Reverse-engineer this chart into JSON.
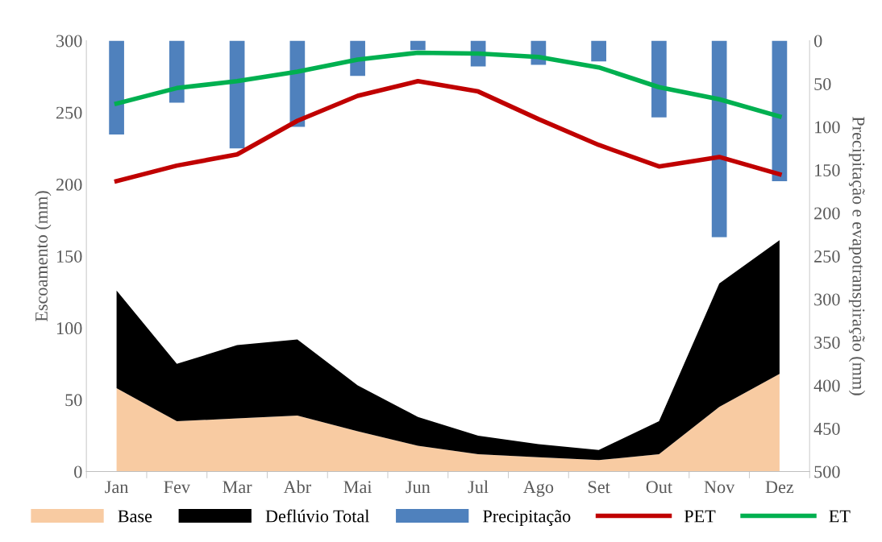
{
  "chart_data": {
    "type": "area",
    "stacked": true,
    "categories": [
      "Jan",
      "Fev",
      "Mar",
      "Abr",
      "Mai",
      "Jun",
      "Jul",
      "Ago",
      "Set",
      "Out",
      "Nov",
      "Dez"
    ],
    "series": [
      {
        "name": "Base",
        "color": "#f8cba2",
        "values": [
          58,
          35,
          37,
          39,
          28,
          18,
          12,
          10,
          8,
          12,
          45,
          68
        ]
      },
      {
        "name": "Deflúvio Total",
        "color": "#000000",
        "values": [
          68,
          40,
          51,
          53,
          32,
          20,
          13,
          9,
          7,
          23,
          86,
          93
        ]
      },
      {
        "name": "Precipitação",
        "type": "bar",
        "axis": "y2",
        "color": "#4f81bd",
        "values": [
          109,
          72,
          125,
          100,
          41,
          11,
          30,
          28,
          24,
          89,
          228,
          163
        ]
      },
      {
        "name": "PET",
        "type": "line",
        "axis": "y2",
        "color": "#c00000",
        "values": [
          163,
          145,
          132,
          93,
          64,
          47,
          59,
          91,
          121,
          146,
          135,
          155
        ]
      },
      {
        "name": "ET",
        "type": "line",
        "axis": "y2",
        "color": "#00b050",
        "values": [
          73,
          55,
          47,
          36,
          22,
          14,
          15,
          19,
          31,
          54,
          68,
          88
        ]
      }
    ],
    "ylabel": "Escoamento (mm)",
    "y2label": "Precipitação e evapotranspiração (mm)",
    "ylim": [
      0,
      300
    ],
    "yticks": [
      0,
      50,
      100,
      150,
      200,
      250,
      300
    ],
    "y2lim": [
      500,
      0
    ],
    "y2ticks": [
      0,
      50,
      100,
      150,
      200,
      250,
      300,
      350,
      400,
      450,
      500
    ],
    "legend": "bottom",
    "grid": false,
    "marker": "none",
    "line_style": "solid"
  }
}
